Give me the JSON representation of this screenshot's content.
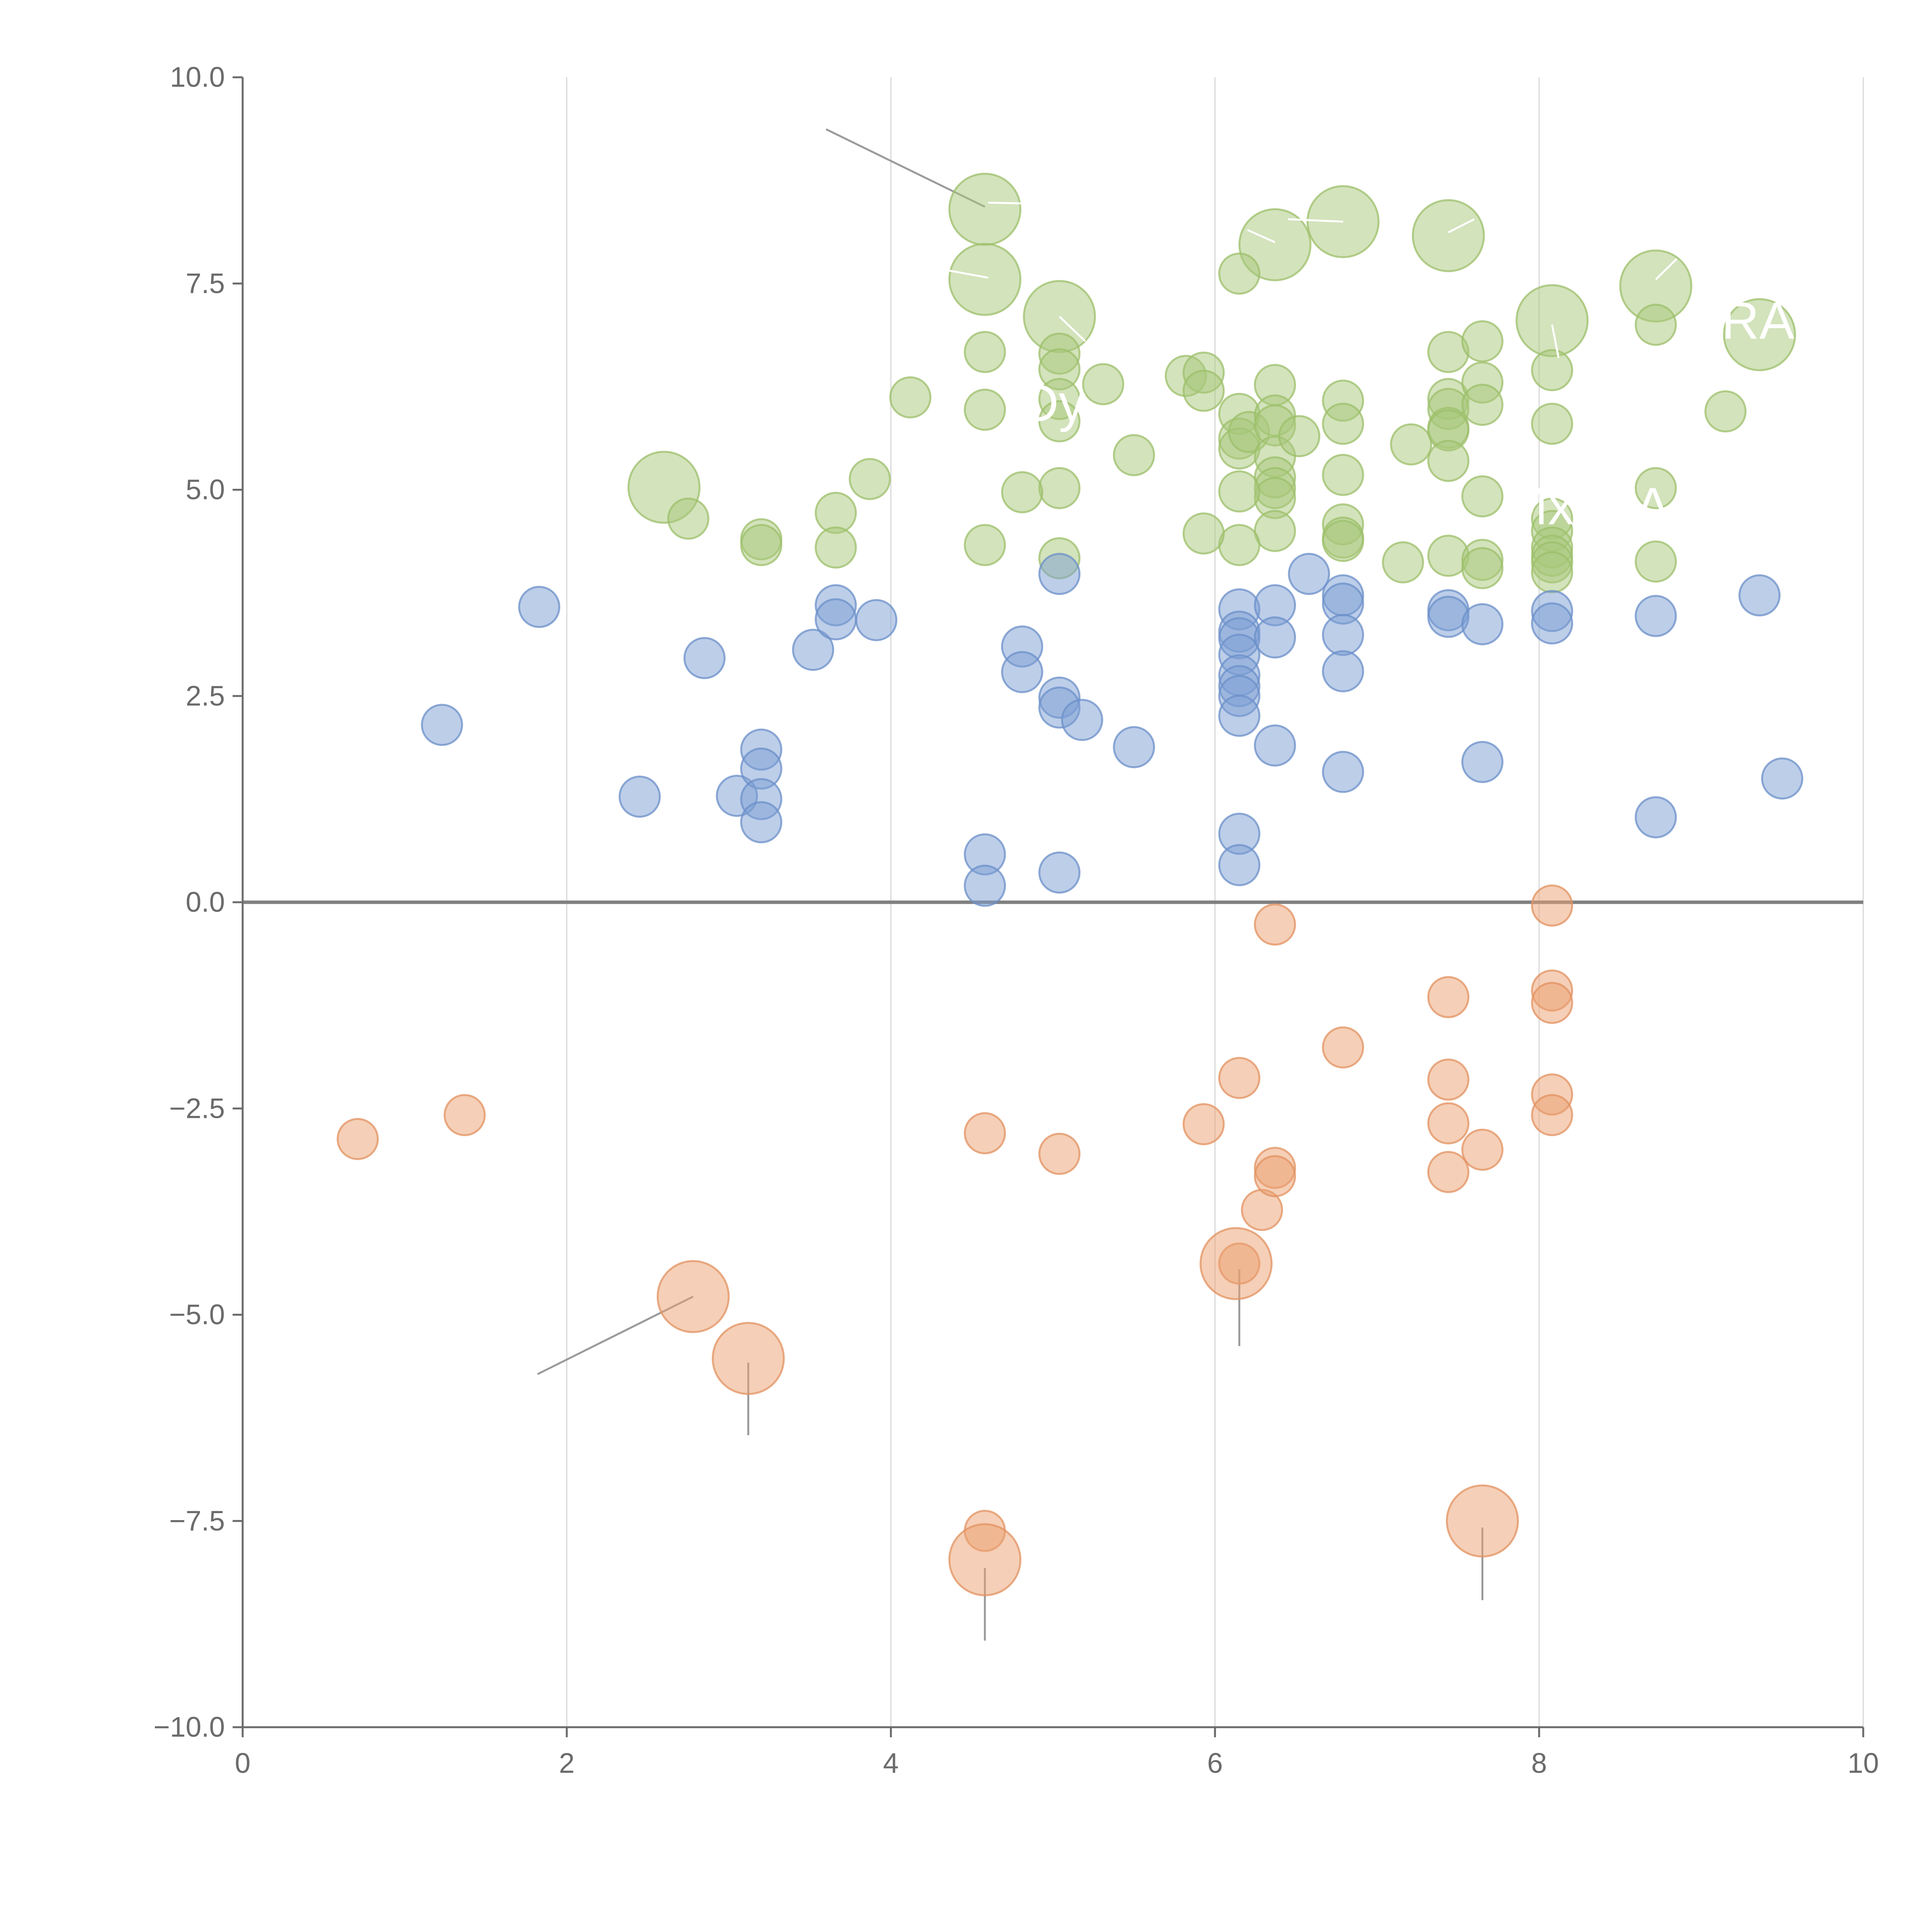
{
  "chart_data": {
    "type": "scatter",
    "title": "",
    "xlabel": "",
    "ylabel": "",
    "xlim": [
      0,
      10
    ],
    "ylim": [
      -10,
      10
    ],
    "grid": "vertical",
    "zero_line": true,
    "x_ticks": [
      0,
      2,
      4,
      6,
      8,
      10
    ],
    "x_tick_labels": [
      "0",
      "2",
      "4",
      "6",
      "8",
      "10"
    ],
    "y_ticks": [
      10,
      7.5,
      5,
      2.5,
      0,
      -2.5,
      -5,
      -7.5,
      -10
    ],
    "y_tick_labels": [
      "10.0",
      "7.5",
      "5.0",
      "2.5",
      "0.0",
      "−2.5",
      "−5.0",
      "−7.5",
      "−10.0"
    ],
    "colors": {
      "green_fill": "#a7c77a",
      "green_stroke": "#9cbf6a",
      "blue_fill": "#7c9ed3",
      "blue_stroke": "#6b8fc8",
      "orange_fill": "#eba070",
      "orange_stroke": "#e29160",
      "leader_dark": "#9a9a9a",
      "leader_light": "#ffffff"
    },
    "series": [
      {
        "name": "green",
        "color": "green",
        "points": [
          [
            4.58,
            8.4,
            3
          ],
          [
            4.58,
            7.55,
            3
          ],
          [
            5.04,
            7.1,
            3
          ],
          [
            6.37,
            7.97,
            3
          ],
          [
            6.79,
            8.25,
            3
          ],
          [
            7.44,
            8.08,
            3
          ],
          [
            8.08,
            7.05,
            3
          ],
          [
            8.72,
            7.47,
            3
          ],
          [
            9.36,
            6.88,
            3
          ],
          [
            2.6,
            5.03,
            3
          ],
          [
            6.15,
            7.62,
            1
          ],
          [
            4.58,
            6.67,
            1
          ],
          [
            5.04,
            6.65,
            1
          ],
          [
            5.04,
            6.46,
            1
          ],
          [
            5.31,
            6.28,
            1
          ],
          [
            4.58,
            5.97,
            1
          ],
          [
            4.12,
            6.12,
            1
          ],
          [
            5.04,
            6.1,
            1
          ],
          [
            5.04,
            5.83,
            1
          ],
          [
            5.82,
            6.38,
            1
          ],
          [
            5.93,
            6.42,
            1
          ],
          [
            5.93,
            6.2,
            1
          ],
          [
            6.15,
            5.92,
            1
          ],
          [
            6.15,
            5.62,
            1
          ],
          [
            6.15,
            5.5,
            1
          ],
          [
            6.21,
            5.7,
            1
          ],
          [
            6.37,
            6.27,
            1
          ],
          [
            6.37,
            5.9,
            1
          ],
          [
            6.37,
            5.78,
            1
          ],
          [
            6.37,
            5.4,
            1
          ],
          [
            6.37,
            5.15,
            1
          ],
          [
            6.37,
            5.02,
            1
          ],
          [
            6.37,
            4.9,
            1
          ],
          [
            6.37,
            4.5,
            1
          ],
          [
            6.52,
            5.65,
            1
          ],
          [
            6.79,
            6.08,
            1
          ],
          [
            6.79,
            5.8,
            1
          ],
          [
            6.79,
            5.18,
            1
          ],
          [
            6.79,
            4.58,
            1
          ],
          [
            6.79,
            4.42,
            1
          ],
          [
            6.79,
            4.38,
            1
          ],
          [
            6.15,
            4.98,
            1
          ],
          [
            6.15,
            4.33,
            1
          ],
          [
            5.93,
            4.47,
            1
          ],
          [
            5.5,
            5.42,
            1
          ],
          [
            5.04,
            5.02,
            1
          ],
          [
            4.81,
            4.97,
            1
          ],
          [
            5.04,
            4.17,
            1
          ],
          [
            4.58,
            4.33,
            1
          ],
          [
            3.87,
            5.13,
            1
          ],
          [
            3.66,
            4.72,
            1
          ],
          [
            3.66,
            4.3,
            1
          ],
          [
            3.2,
            4.4,
            1
          ],
          [
            3.2,
            4.33,
            1
          ],
          [
            2.75,
            4.65,
            1
          ],
          [
            7.21,
            5.55,
            1
          ],
          [
            7.44,
            6.67,
            1
          ],
          [
            7.44,
            6.1,
            1
          ],
          [
            7.44,
            5.98,
            1
          ],
          [
            7.44,
            5.75,
            1
          ],
          [
            7.44,
            5.72,
            1
          ],
          [
            7.44,
            5.35,
            1
          ],
          [
            7.44,
            4.2,
            1
          ],
          [
            7.16,
            4.12,
            1
          ],
          [
            7.65,
            6.8,
            1
          ],
          [
            7.65,
            6.3,
            1
          ],
          [
            7.65,
            6.03,
            1
          ],
          [
            7.65,
            4.92,
            1
          ],
          [
            7.65,
            4.15,
            1
          ],
          [
            7.65,
            4.05,
            1
          ],
          [
            8.08,
            6.45,
            1
          ],
          [
            8.08,
            5.8,
            1
          ],
          [
            8.08,
            4.65,
            1
          ],
          [
            8.08,
            4.5,
            1
          ],
          [
            8.08,
            4.3,
            1
          ],
          [
            8.08,
            4.2,
            1
          ],
          [
            8.08,
            4.12,
            1
          ],
          [
            8.08,
            4.0,
            1
          ],
          [
            8.72,
            7.0,
            1
          ],
          [
            8.72,
            5.02,
            1
          ],
          [
            8.72,
            4.13,
            1
          ],
          [
            9.15,
            5.95,
            1
          ]
        ]
      },
      {
        "name": "blue",
        "color": "blue",
        "points": [
          [
            1.23,
            2.15,
            1
          ],
          [
            1.83,
            3.58,
            1
          ],
          [
            2.45,
            1.28,
            1
          ],
          [
            2.85,
            2.96,
            1
          ],
          [
            3.05,
            1.29,
            1
          ],
          [
            3.2,
            1.85,
            1
          ],
          [
            3.2,
            1.62,
            1
          ],
          [
            3.2,
            1.25,
            1
          ],
          [
            3.2,
            0.97,
            1
          ],
          [
            3.52,
            3.06,
            1
          ],
          [
            3.66,
            3.6,
            1
          ],
          [
            3.66,
            3.43,
            1
          ],
          [
            3.91,
            3.42,
            1
          ],
          [
            4.58,
            0.58,
            1
          ],
          [
            4.58,
            0.2,
            1
          ],
          [
            4.81,
            3.1,
            1
          ],
          [
            4.81,
            2.79,
            1
          ],
          [
            5.04,
            3.98,
            1
          ],
          [
            5.04,
            2.48,
            1
          ],
          [
            5.04,
            2.36,
            1
          ],
          [
            5.04,
            0.36,
            1
          ],
          [
            5.18,
            2.21,
            1
          ],
          [
            5.5,
            1.88,
            1
          ],
          [
            6.15,
            3.55,
            1
          ],
          [
            6.15,
            3.28,
            1
          ],
          [
            6.15,
            3.2,
            1
          ],
          [
            6.15,
            3.0,
            1
          ],
          [
            6.15,
            2.75,
            1
          ],
          [
            6.15,
            2.62,
            1
          ],
          [
            6.15,
            2.5,
            1
          ],
          [
            6.15,
            2.26,
            1
          ],
          [
            6.15,
            0.83,
            1
          ],
          [
            6.15,
            0.45,
            1
          ],
          [
            6.37,
            3.6,
            1
          ],
          [
            6.37,
            3.21,
            1
          ],
          [
            6.37,
            1.9,
            1
          ],
          [
            6.58,
            3.98,
            1
          ],
          [
            6.79,
            3.72,
            1
          ],
          [
            6.79,
            3.62,
            1
          ],
          [
            6.79,
            3.24,
            1
          ],
          [
            6.79,
            2.8,
            1
          ],
          [
            6.79,
            1.58,
            1
          ],
          [
            7.44,
            3.54,
            1
          ],
          [
            7.44,
            3.46,
            1
          ],
          [
            7.65,
            3.37,
            1
          ],
          [
            7.65,
            1.7,
            1
          ],
          [
            8.08,
            3.53,
            1
          ],
          [
            8.08,
            3.38,
            1
          ],
          [
            8.72,
            3.47,
            1
          ],
          [
            8.72,
            1.03,
            1
          ],
          [
            9.36,
            3.72,
            1
          ],
          [
            9.5,
            1.5,
            1
          ]
        ]
      },
      {
        "name": "orange",
        "color": "orange",
        "points": [
          [
            0.71,
            -2.87,
            1
          ],
          [
            1.37,
            -2.58,
            1
          ],
          [
            2.78,
            -4.78,
            3
          ],
          [
            3.12,
            -5.53,
            3
          ],
          [
            4.58,
            -2.8,
            1
          ],
          [
            4.58,
            -7.62,
            1
          ],
          [
            4.58,
            -7.97,
            3
          ],
          [
            5.04,
            -3.05,
            1
          ],
          [
            5.93,
            -2.69,
            1
          ],
          [
            6.15,
            -2.13,
            1
          ],
          [
            6.15,
            -4.38,
            1
          ],
          [
            6.13,
            -4.38,
            3
          ],
          [
            6.29,
            -3.73,
            1
          ],
          [
            6.37,
            -0.27,
            1
          ],
          [
            6.37,
            -3.22,
            1
          ],
          [
            6.37,
            -3.32,
            1
          ],
          [
            6.79,
            -1.76,
            1
          ],
          [
            7.44,
            -1.15,
            1
          ],
          [
            7.44,
            -2.15,
            1
          ],
          [
            7.44,
            -2.68,
            1
          ],
          [
            7.44,
            -3.27,
            1
          ],
          [
            7.65,
            -3.0,
            1
          ],
          [
            7.65,
            -7.5,
            3
          ],
          [
            8.08,
            -0.04,
            1
          ],
          [
            8.08,
            -1.07,
            1
          ],
          [
            8.08,
            -1.22,
            1
          ],
          [
            8.08,
            -2.33,
            1
          ],
          [
            8.08,
            -2.58,
            1
          ]
        ]
      }
    ],
    "annotations": [
      {
        "label": "Dy",
        "x": 5.0,
        "y": 6.0
      },
      {
        "label": "RA",
        "x": 9.35,
        "y": 7.0
      },
      {
        "label": "Mx",
        "x": 8.0,
        "y": 4.75
      },
      {
        "label": "A",
        "x": 8.7,
        "y": 4.75
      }
    ],
    "leaders": [
      {
        "from": [
          3.6,
          9.37
        ],
        "to": [
          4.58,
          8.43
        ],
        "tone": "dark"
      },
      {
        "from": [
          1.82,
          -5.72
        ],
        "to": [
          2.78,
          -4.78
        ],
        "tone": "dark"
      },
      {
        "from": [
          3.12,
          -5.58
        ],
        "to": [
          3.12,
          -6.46
        ],
        "tone": "dark"
      },
      {
        "from": [
          6.15,
          -4.45
        ],
        "to": [
          6.15,
          -5.38
        ],
        "tone": "dark"
      },
      {
        "from": [
          4.58,
          -8.07
        ],
        "to": [
          4.58,
          -8.95
        ],
        "tone": "dark"
      },
      {
        "from": [
          7.65,
          -7.58
        ],
        "to": [
          7.65,
          -8.46
        ],
        "tone": "dark"
      },
      {
        "from": [
          4.6,
          8.48
        ],
        "to": [
          5.3,
          8.45
        ],
        "tone": "light"
      },
      {
        "from": [
          4.6,
          7.57
        ],
        "to": [
          4.1,
          7.75
        ],
        "tone": "light"
      },
      {
        "from": [
          5.04,
          7.1
        ],
        "to": [
          5.2,
          6.8
        ],
        "tone": "light"
      },
      {
        "from": [
          6.37,
          8.0
        ],
        "to": [
          6.2,
          8.15
        ],
        "tone": "light"
      },
      {
        "from": [
          6.79,
          8.25
        ],
        "to": [
          6.45,
          8.28
        ],
        "tone": "light"
      },
      {
        "from": [
          7.44,
          8.12
        ],
        "to": [
          7.6,
          8.28
        ],
        "tone": "light"
      },
      {
        "from": [
          8.08,
          7.0
        ],
        "to": [
          8.12,
          6.6
        ],
        "tone": "light"
      },
      {
        "from": [
          8.72,
          7.55
        ],
        "to": [
          8.85,
          7.8
        ],
        "tone": "light"
      }
    ]
  }
}
